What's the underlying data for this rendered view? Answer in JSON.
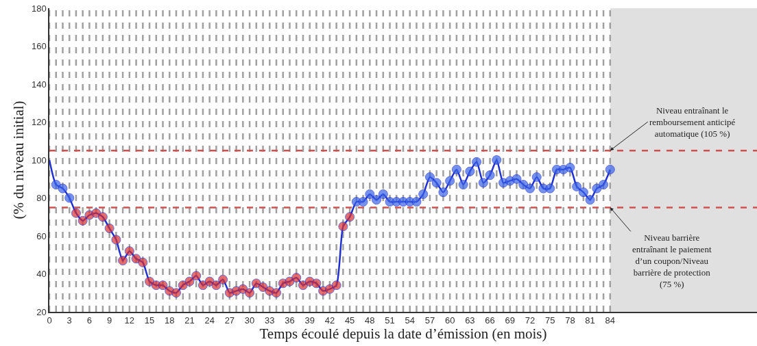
{
  "chart_data": {
    "type": "line",
    "xlabel": "Temps écoulé depuis la date d’émission (en mois)",
    "ylabel": "(% du niveau initial)",
    "x": [
      0,
      1,
      2,
      3,
      4,
      5,
      6,
      7,
      8,
      9,
      10,
      11,
      12,
      13,
      14,
      15,
      16,
      17,
      18,
      19,
      20,
      21,
      22,
      23,
      24,
      25,
      26,
      27,
      28,
      29,
      30,
      31,
      32,
      33,
      34,
      35,
      36,
      37,
      38,
      39,
      40,
      41,
      42,
      43,
      44,
      45,
      46,
      47,
      48,
      49,
      50,
      51,
      52,
      53,
      54,
      55,
      56,
      57,
      58,
      59,
      60,
      61,
      62,
      63,
      64,
      65,
      66,
      67,
      68,
      69,
      70,
      71,
      72,
      73,
      74,
      75,
      76,
      77,
      78,
      79,
      80,
      81,
      82,
      83,
      84
    ],
    "series": [
      {
        "color": "#1f2fd0",
        "values": [
          100,
          87,
          85,
          80,
          72,
          68,
          71,
          72,
          70,
          64,
          58,
          47,
          52,
          48,
          46,
          36,
          34,
          34,
          31,
          30,
          34,
          36,
          39,
          34,
          36,
          34,
          37,
          30,
          31,
          32,
          30,
          35,
          33,
          31,
          30,
          35,
          36,
          38,
          34,
          36,
          35,
          31,
          32,
          34,
          65,
          70,
          78,
          78,
          82,
          79,
          82,
          78,
          78,
          78,
          78,
          78,
          82,
          91,
          88,
          83,
          89,
          95,
          87,
          94,
          99,
          88,
          92,
          100,
          88,
          89,
          90,
          87,
          85,
          91,
          85,
          85,
          95,
          95,
          96,
          86,
          83,
          79,
          85,
          87,
          95
        ],
        "colors": [
          null,
          "#3a63e8",
          "#3a63e8",
          "#3a63e8",
          "#d93030",
          "#d93030",
          "#d93030",
          "#d93030",
          "#d93030",
          "#d93030",
          "#d93030",
          "#d93030",
          "#d93030",
          "#d93030",
          "#d93030",
          "#d93030",
          "#d93030",
          "#d93030",
          "#d93030",
          "#d93030",
          "#d93030",
          "#d93030",
          "#d93030",
          "#d93030",
          "#d93030",
          "#d93030",
          "#d93030",
          "#d93030",
          "#d93030",
          "#d93030",
          "#d93030",
          "#d93030",
          "#d93030",
          "#d93030",
          "#d93030",
          "#d93030",
          "#d93030",
          "#d93030",
          "#d93030",
          "#d93030",
          "#d93030",
          "#d93030",
          "#d93030",
          "#d93030",
          "#d93030",
          "#d93030",
          "#3a63e8",
          "#3a63e8",
          "#3a63e8",
          "#3a63e8",
          "#3a63e8",
          "#3a63e8",
          "#3a63e8",
          "#3a63e8",
          "#3a63e8",
          "#3a63e8",
          "#3a63e8",
          "#3a63e8",
          "#3a63e8",
          "#3a63e8",
          "#3a63e8",
          "#3a63e8",
          "#3a63e8",
          "#3a63e8",
          "#3a63e8",
          "#3a63e8",
          "#3a63e8",
          "#3a63e8",
          "#3a63e8",
          "#3a63e8",
          "#3a63e8",
          "#3a63e8",
          "#3a63e8",
          "#3a63e8",
          "#3a63e8",
          "#3a63e8",
          "#3a63e8",
          "#3a63e8",
          "#3a63e8",
          "#3a63e8",
          "#3a63e8",
          "#3a63e8",
          "#3a63e8",
          "#3a63e8",
          "#3a63e8"
        ]
      }
    ],
    "marker": "circle",
    "line_style": "solid",
    "xlim": [
      0,
      106
    ],
    "xticks": [
      0,
      {
        "value": 1,
        "label": null
      },
      {
        "value": 2,
        "label": null
      },
      3,
      {
        "value": 4,
        "label": null
      },
      {
        "value": 5,
        "label": null
      },
      6,
      {
        "value": 7,
        "label": null
      },
      {
        "value": 8,
        "label": null
      },
      9,
      {
        "value": 10,
        "label": null
      },
      {
        "value": 11,
        "label": null
      },
      12,
      {
        "value": 13,
        "label": null
      },
      {
        "value": 14,
        "label": null
      },
      15,
      {
        "value": 16,
        "label": null
      },
      {
        "value": 17,
        "label": null
      },
      18,
      {
        "value": 19,
        "label": null
      },
      {
        "value": 20,
        "label": null
      },
      21,
      {
        "value": 22,
        "label": null
      },
      {
        "value": 23,
        "label": null
      },
      24,
      {
        "value": 25,
        "label": null
      },
      {
        "value": 26,
        "label": null
      },
      27,
      {
        "value": 28,
        "label": null
      },
      {
        "value": 29,
        "label": null
      },
      30,
      {
        "value": 31,
        "label": null
      },
      {
        "value": 32,
        "label": null
      },
      33,
      {
        "value": 34,
        "label": null
      },
      {
        "value": 35,
        "label": null
      },
      36,
      {
        "value": 37,
        "label": null
      },
      {
        "value": 38,
        "label": null
      },
      39,
      {
        "value": 40,
        "label": null
      },
      {
        "value": 41,
        "label": null
      },
      42,
      {
        "value": 43,
        "label": null
      },
      {
        "value": 44,
        "label": null
      },
      45,
      {
        "value": 46,
        "label": null
      },
      {
        "value": 47,
        "label": null
      },
      48,
      {
        "value": 49,
        "label": null
      },
      {
        "value": 50,
        "label": null
      },
      51,
      {
        "value": 52,
        "label": null
      },
      {
        "value": 53,
        "label": null
      },
      54,
      {
        "value": 55,
        "label": null
      },
      {
        "value": 56,
        "label": null
      },
      57,
      {
        "value": 58,
        "label": null
      },
      {
        "value": 59,
        "label": null
      },
      60,
      {
        "value": 61,
        "label": null
      },
      {
        "value": 62,
        "label": null
      },
      63,
      {
        "value": 64,
        "label": null
      },
      {
        "value": 65,
        "label": null
      },
      66,
      {
        "value": 67,
        "label": null
      },
      {
        "value": 68,
        "label": null
      },
      69,
      {
        "value": 70,
        "label": null
      },
      {
        "value": 71,
        "label": null
      },
      72,
      {
        "value": 73,
        "label": null
      },
      {
        "value": 74,
        "label": null
      },
      75,
      {
        "value": 76,
        "label": null
      },
      {
        "value": 77,
        "label": null
      },
      78,
      {
        "value": 79,
        "label": null
      },
      {
        "value": 80,
        "label": null
      },
      81,
      {
        "value": 82,
        "label": null
      },
      {
        "value": 83,
        "label": null
      },
      84
    ],
    "ylim": [
      20,
      180
    ],
    "yticks": [
      20,
      40,
      60,
      80,
      100,
      120,
      140,
      160,
      180
    ],
    "grid": "x",
    "ref_lines": [
      {
        "axis": "y",
        "value": 105,
        "color": "#d05050",
        "line_style": "dashed"
      },
      {
        "axis": "y",
        "value": 75,
        "color": "#d05050",
        "line_style": "dashed"
      }
    ],
    "bands": [
      {
        "axis": "x",
        "from": 84,
        "to": 106,
        "color": "#e0e0e0"
      }
    ],
    "annotations": [
      {
        "text": "Niveau entraînant le\nremboursement anticipé\nautomatique (105 %)",
        "x": 84,
        "y": 105
      },
      {
        "text": "Niveau barrière\nentraînant le paiement\nd’un coupon/Niveau\nbarrière de protection\n(75 %)",
        "x": 84,
        "y": 75
      }
    ]
  }
}
